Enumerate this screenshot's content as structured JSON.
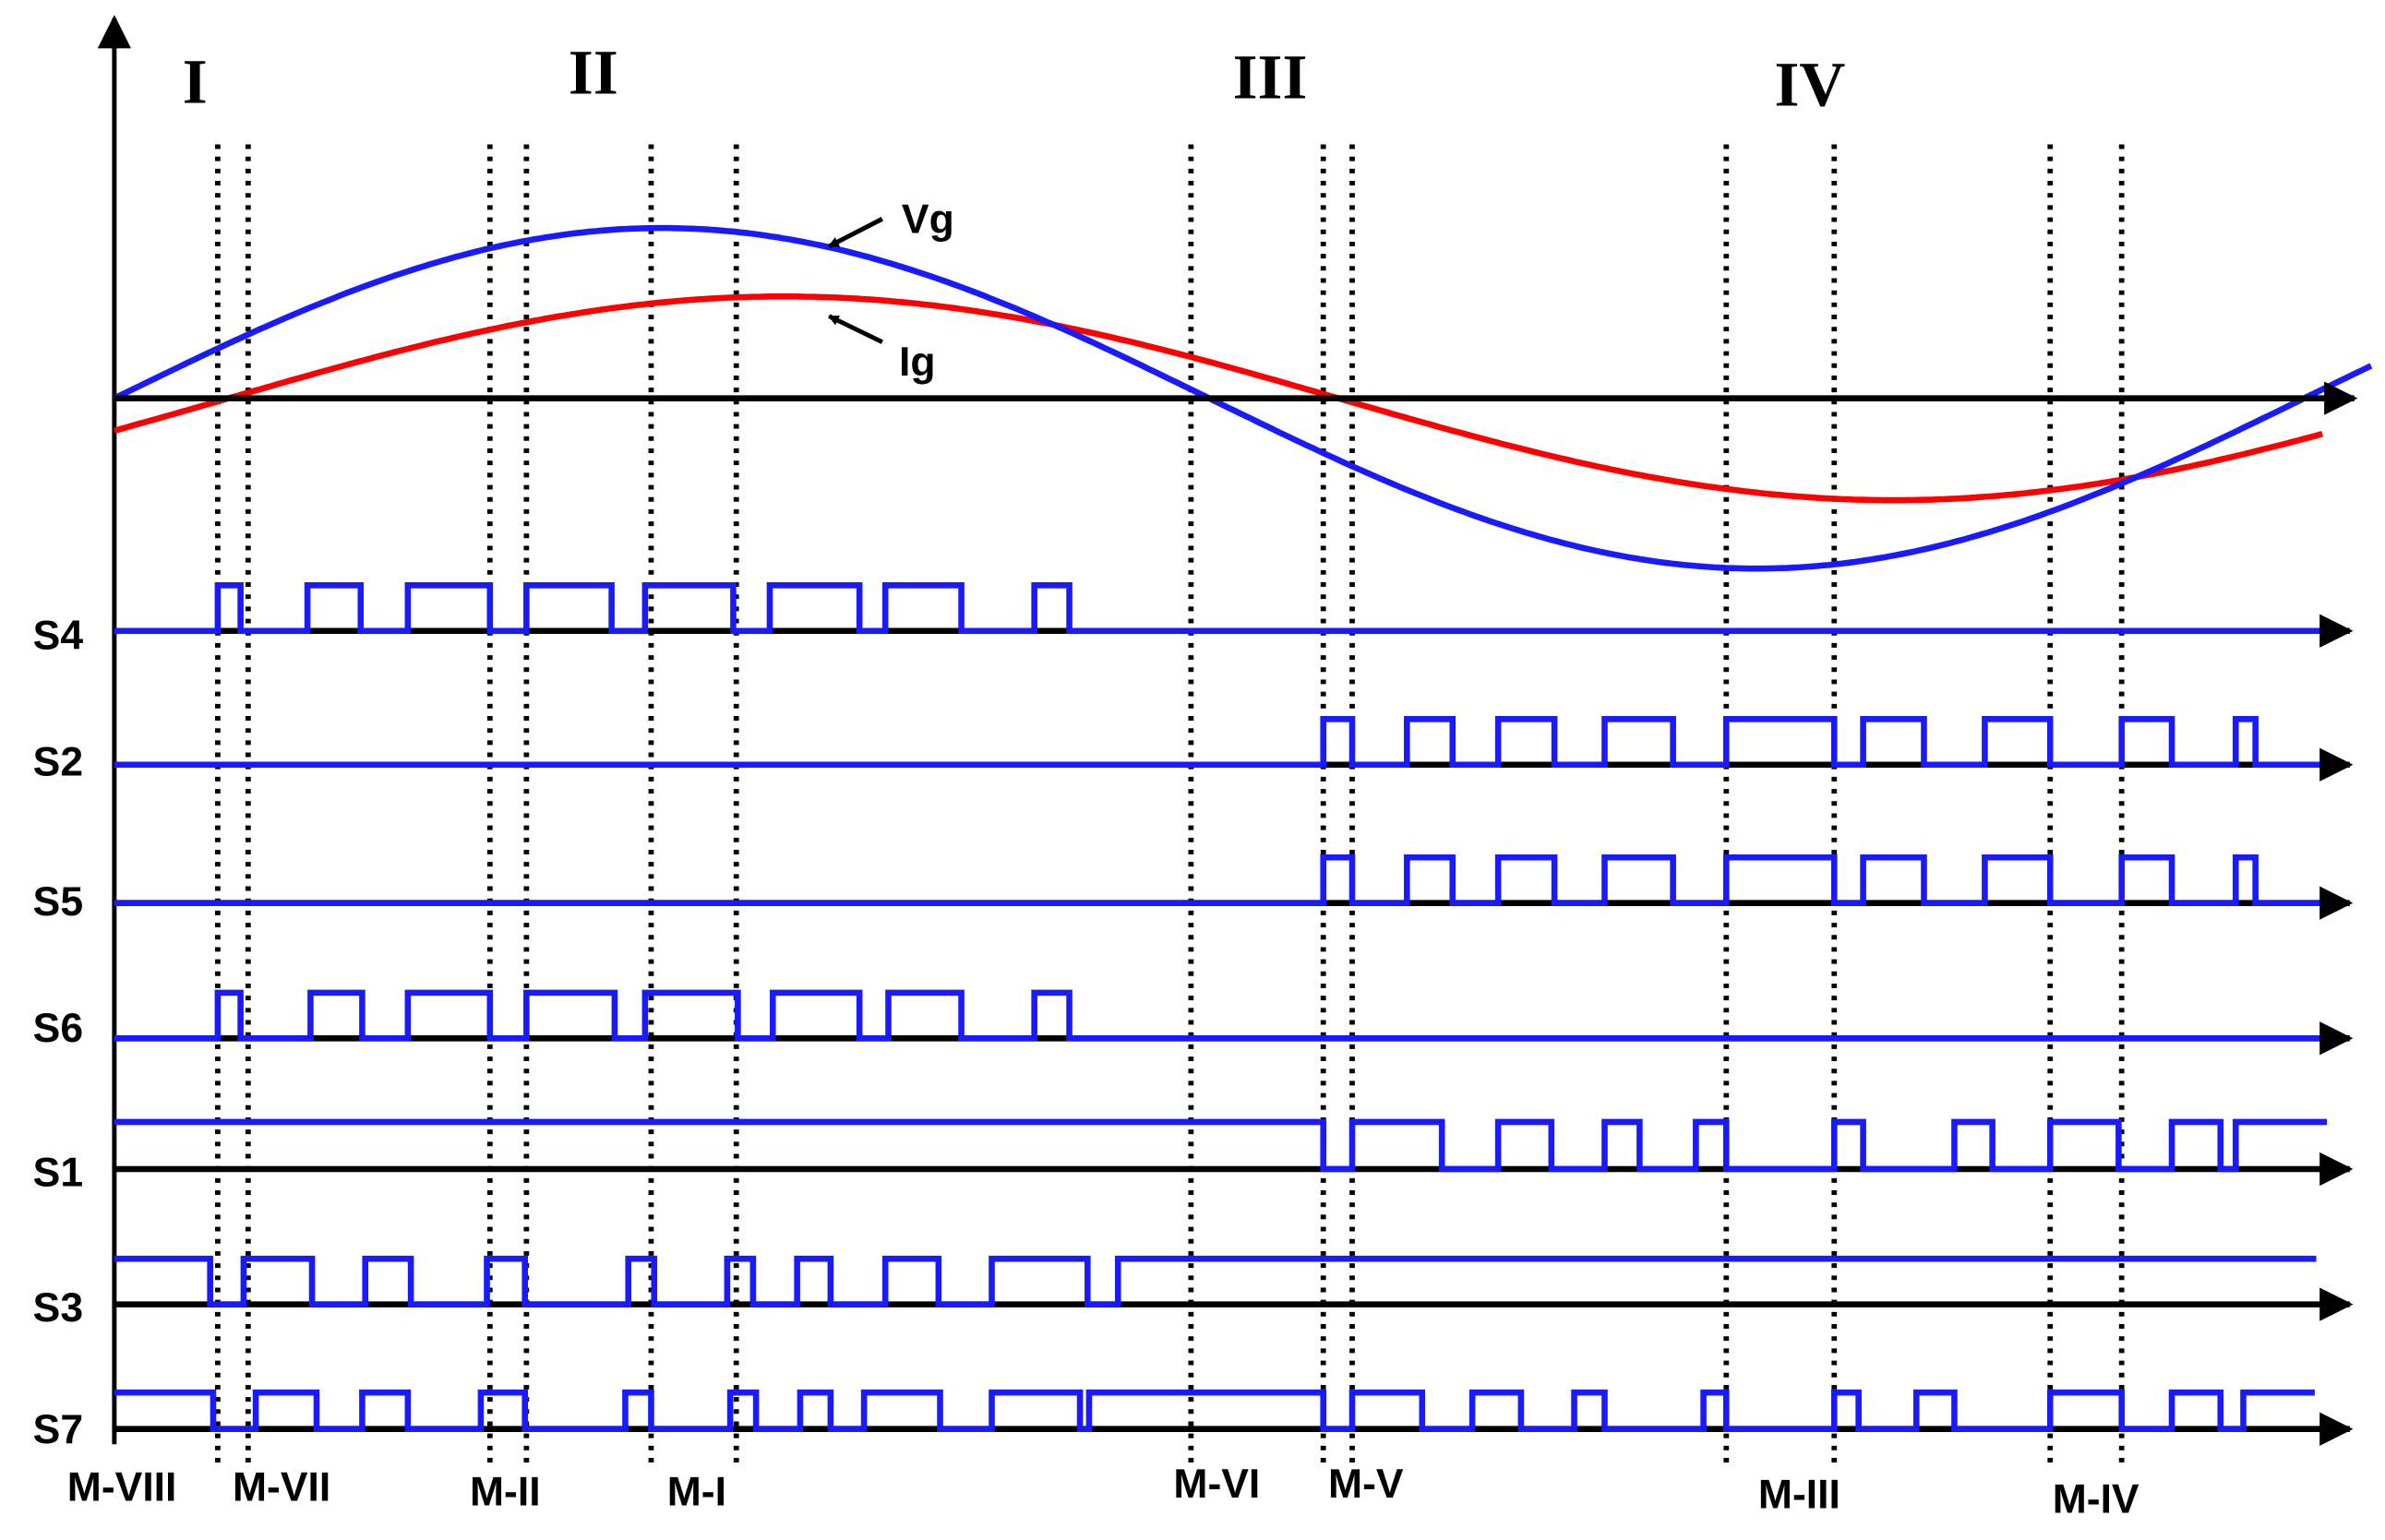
{
  "regions": [
    "I",
    "II",
    "III",
    "IV"
  ],
  "signals": {
    "vg": "Vg",
    "ig": "Ig"
  },
  "switches": [
    "S4",
    "S2",
    "S5",
    "S6",
    "S1",
    "S3",
    "S7"
  ],
  "modes": [
    "M-VIII",
    "M-VII",
    "M-II",
    "M-I",
    "M-VI",
    "M-V",
    "M-III",
    "M-IV"
  ]
}
